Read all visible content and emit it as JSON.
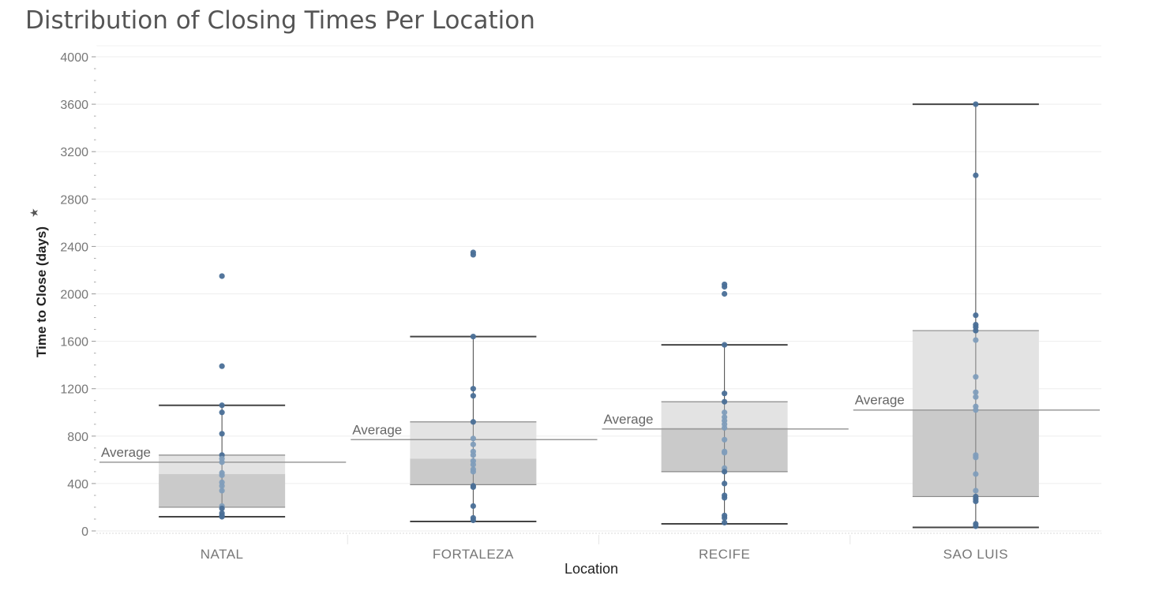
{
  "chart_data": {
    "type": "box",
    "title": "Distribution of Closing Times Per Location",
    "xlabel": "Location",
    "ylabel": "Time to Close (days)",
    "ylim": [
      0,
      4000
    ],
    "yticks": [
      0,
      400,
      800,
      1200,
      1600,
      2000,
      2400,
      2800,
      3200,
      3600,
      4000
    ],
    "grid": true,
    "average_label": "Average",
    "categories": [
      "NATAL",
      "FORTALEZA",
      "RECIFE",
      "SAO LUIS"
    ],
    "series": [
      {
        "category": "NATAL",
        "whisker_low": 120,
        "q1": 200,
        "median": 480,
        "q3": 640,
        "whisker_high": 1060,
        "average": 580,
        "points": [
          2150,
          1390,
          1060,
          1000,
          820,
          640,
          610,
          580,
          490,
          470,
          410,
          380,
          340,
          210,
          190,
          150,
          130,
          120
        ]
      },
      {
        "category": "FORTALEZA",
        "whisker_low": 80,
        "q1": 390,
        "median": 610,
        "q3": 920,
        "whisker_high": 1640,
        "average": 770,
        "points": [
          2350,
          2330,
          1640,
          1200,
          1140,
          920,
          780,
          730,
          670,
          640,
          590,
          560,
          520,
          500,
          380,
          370,
          210,
          110,
          90
        ]
      },
      {
        "category": "RECIFE",
        "whisker_low": 60,
        "q1": 500,
        "median": 870,
        "q3": 1090,
        "whisker_high": 1570,
        "average": 860,
        "points": [
          2080,
          2060,
          2000,
          1570,
          1160,
          1090,
          1000,
          960,
          930,
          900,
          870,
          770,
          670,
          660,
          530,
          500,
          400,
          300,
          280,
          130,
          110,
          70
        ]
      },
      {
        "category": "SAO LUIS",
        "whisker_low": 30,
        "q1": 290,
        "median": 1020,
        "q3": 1690,
        "whisker_high": 3600,
        "average": 1020,
        "points": [
          3600,
          3000,
          1820,
          1740,
          1720,
          1690,
          1610,
          1300,
          1170,
          1130,
          1050,
          1020,
          640,
          620,
          480,
          340,
          290,
          270,
          250,
          60,
          40
        ]
      }
    ],
    "colors": {
      "point_dark": "#4a6f97",
      "point_light": "#7f9dbb",
      "box_upper": "#e3e3e3",
      "box_lower": "#cacaca",
      "whisker": "#444444",
      "average_line": "#9a9a9a",
      "grid": "#eeeeee"
    }
  }
}
